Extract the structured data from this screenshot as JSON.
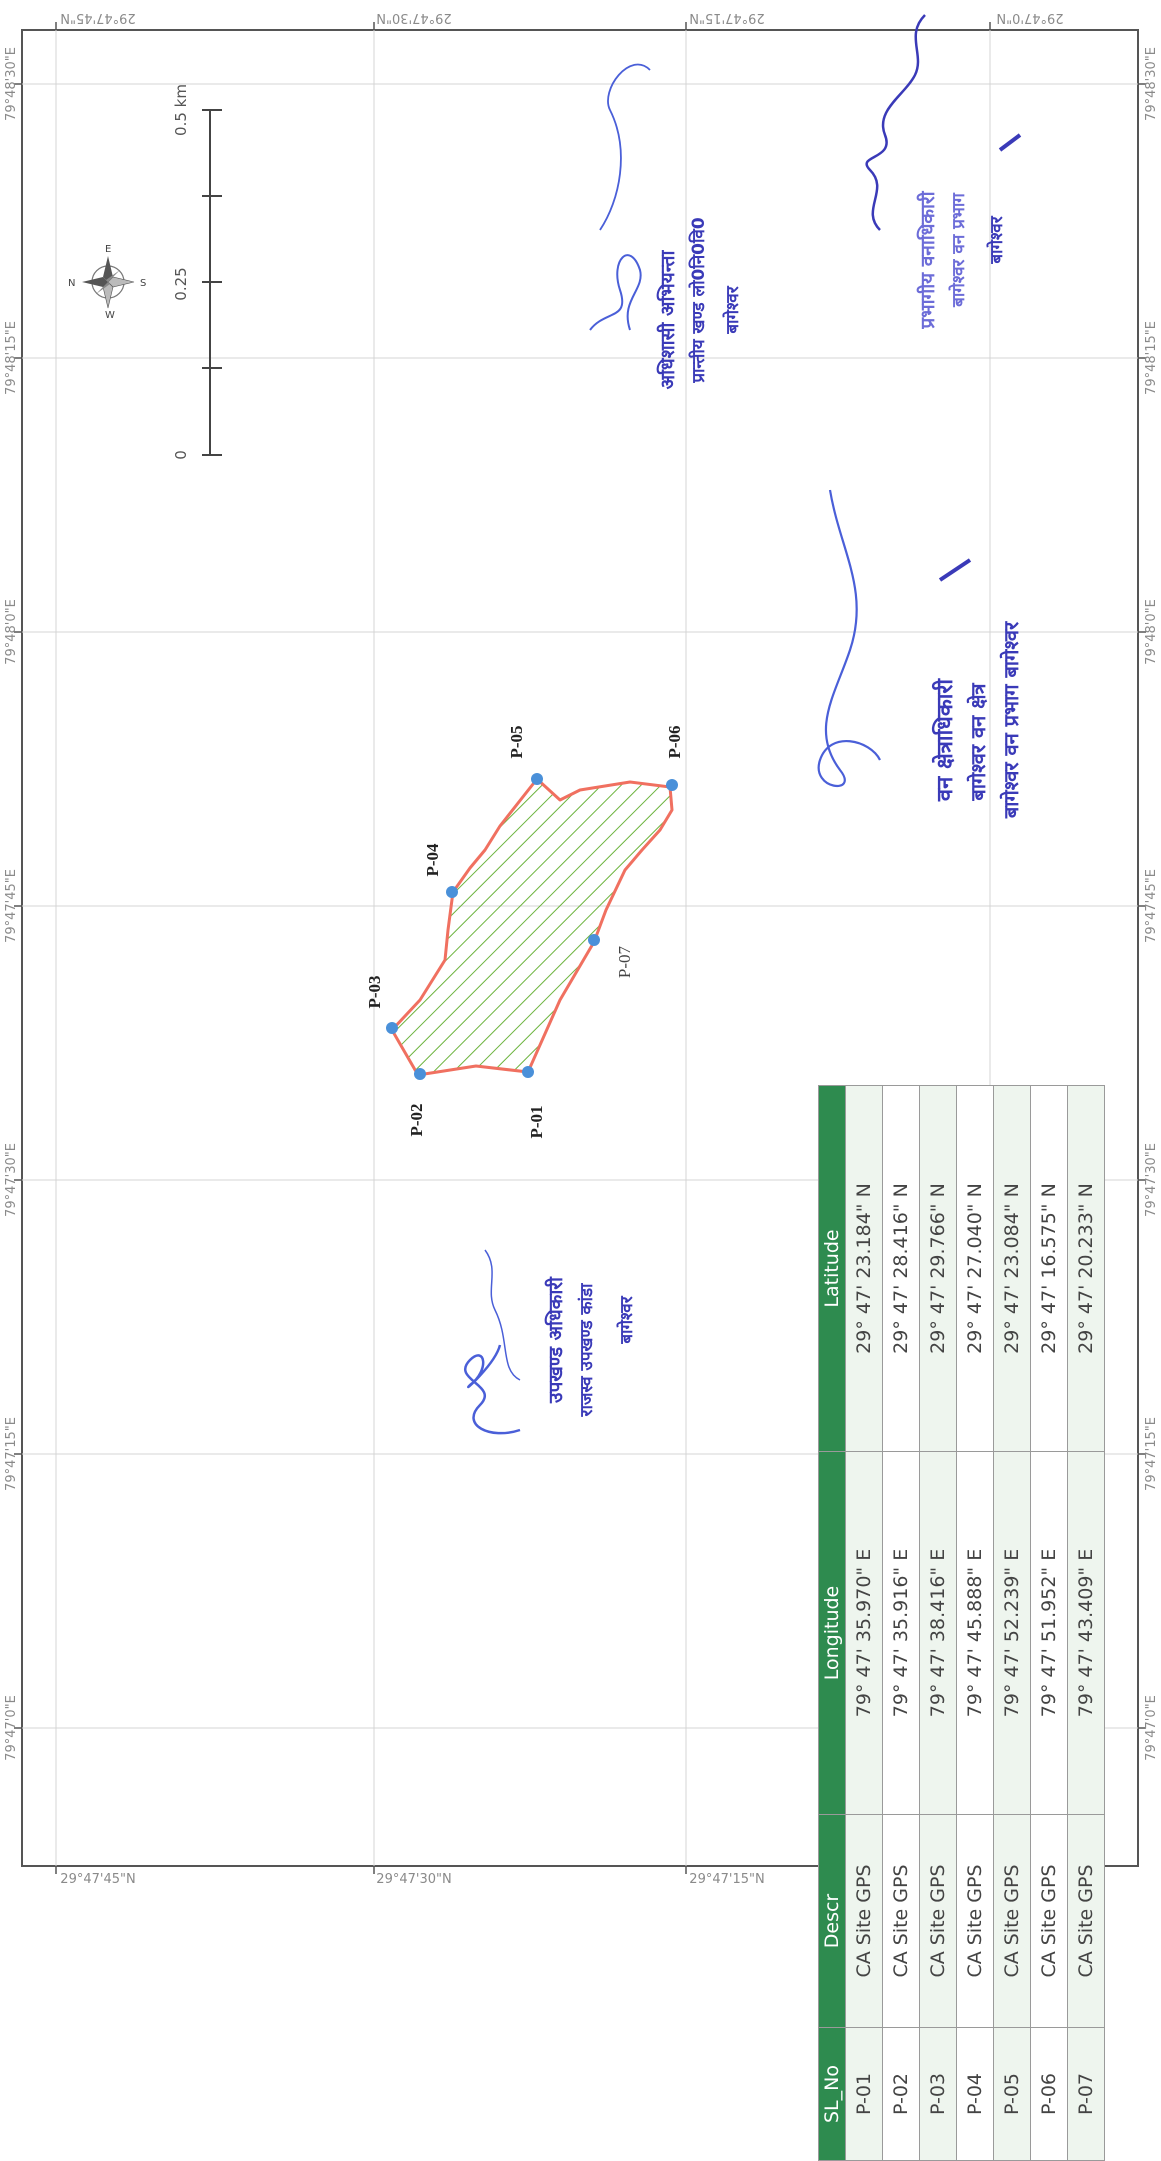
{
  "map": {
    "lat_ticks": [
      {
        "label": "29°47'45\"N"
      },
      {
        "label": "29°47'30\"N"
      },
      {
        "label": "29°47'15\"N"
      },
      {
        "label": "29°47'0\"N"
      }
    ],
    "lon_ticks": [
      {
        "label": "79°48'30\"E"
      },
      {
        "label": "79°48'15\"E"
      },
      {
        "label": "79°48'0\"E"
      },
      {
        "label": "79°47'45\"E"
      },
      {
        "label": "79°47'30\"E"
      },
      {
        "label": "79°47'15\"E"
      },
      {
        "label": "79°47'0\"E"
      }
    ],
    "scale_bar": {
      "labels": [
        "0",
        "0.25",
        "0.5 km"
      ]
    },
    "compass": {
      "n": "N",
      "s": "S",
      "e": "E",
      "w": "W"
    },
    "points": [
      {
        "id": "P-01"
      },
      {
        "id": "P-02"
      },
      {
        "id": "P-03"
      },
      {
        "id": "P-04"
      },
      {
        "id": "P-05"
      },
      {
        "id": "P-06"
      },
      {
        "id": "P-07"
      }
    ],
    "colors": {
      "boundary": "#f07060",
      "hatch": "#6cb33e",
      "point": "#4a90d9",
      "ink": "#3a3ab8",
      "table_header": "#2e8b4f"
    }
  },
  "signatures": [
    {
      "lines": [
        "उपखण्ड अधिकारी",
        "राजस्व उपखण्ड कांडा",
        "बागेश्वर"
      ]
    },
    {
      "lines": [
        "अधिशासी अभियन्ता",
        "प्रान्तीय खण्ड लो0नि0वि0",
        "बागेश्वर"
      ]
    },
    {
      "lines": [
        "वन क्षेत्राधिकारी",
        "बागेश्वर वन क्षेत्र",
        "बागेश्वर वन प्रभाग बागेश्वर"
      ]
    },
    {
      "lines": [
        "प्रभागीय वनाधिकारी",
        "बागेश्वर वन प्रभाग",
        "बागेश्वर"
      ]
    }
  ],
  "table": {
    "headers": [
      "SL_No",
      "Descr",
      "Longitude",
      "Latitude"
    ],
    "rows": [
      [
        "P-01",
        "CA Site GPS",
        "79° 47' 35.970\" E",
        "29° 47' 23.184\" N"
      ],
      [
        "P-02",
        "CA Site GPS",
        "79° 47' 35.916\" E",
        "29° 47' 28.416\" N"
      ],
      [
        "P-03",
        "CA Site GPS",
        "79° 47' 38.416\" E",
        "29° 47' 29.766\" N"
      ],
      [
        "P-04",
        "CA Site GPS",
        "79° 47' 45.888\" E",
        "29° 47' 27.040\" N"
      ],
      [
        "P-05",
        "CA Site GPS",
        "79° 47' 52.239\" E",
        "29° 47' 23.084\" N"
      ],
      [
        "P-06",
        "CA Site GPS",
        "79° 47' 51.952\" E",
        "29° 47' 16.575\" N"
      ],
      [
        "P-07",
        "CA Site GPS",
        "79° 47' 43.409\" E",
        "29° 47' 20.233\" N"
      ]
    ]
  }
}
